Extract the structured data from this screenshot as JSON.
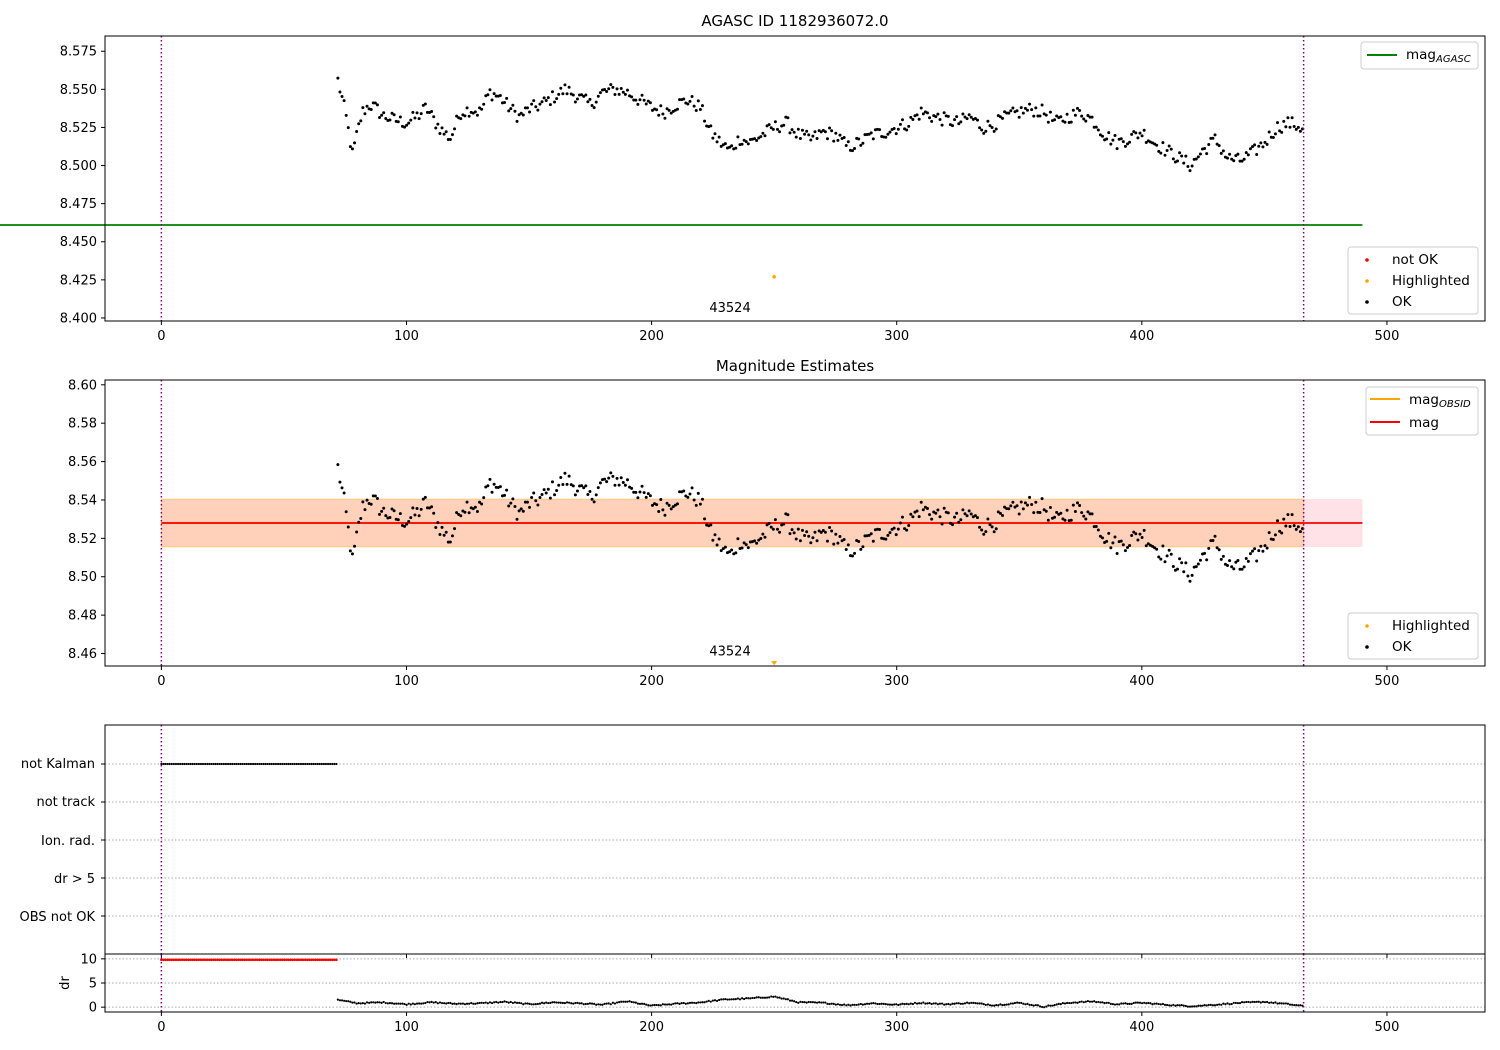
{
  "panels": [
    {
      "id": "agasc",
      "title": "AGASC ID 1182936072.0",
      "xlim": [
        -23,
        540
      ],
      "ylim": [
        8.398,
        8.585
      ],
      "yticks": [
        "8.400",
        "8.425",
        "8.450",
        "8.475",
        "8.500",
        "8.525",
        "8.550",
        "8.575"
      ],
      "xticks": [
        "0",
        "100",
        "200",
        "300",
        "400",
        "500"
      ],
      "annotation": {
        "text": "43524",
        "x": 232,
        "y": 8.404
      },
      "vlines": [
        0,
        466
      ],
      "legend_upper": [
        {
          "label": "mag",
          "sub": "AGASC",
          "color": "#008000"
        }
      ],
      "legend_lower": [
        {
          "label": "not OK",
          "color": "#ff0000"
        },
        {
          "label": "Highlighted",
          "color": "#ffa500"
        },
        {
          "label": "OK",
          "color": "#000000"
        }
      ]
    },
    {
      "id": "estimates",
      "title": "Magnitude Estimates",
      "xlim": [
        -23,
        540
      ],
      "ylim": [
        8.4535,
        8.6025
      ],
      "yticks": [
        "8.46",
        "8.48",
        "8.50",
        "8.52",
        "8.54",
        "8.56",
        "8.58",
        "8.60"
      ],
      "xticks": [
        "0",
        "100",
        "200",
        "300",
        "400",
        "500"
      ],
      "annotation": {
        "text": "43524",
        "x": 232,
        "y": 8.459
      },
      "vlines": [
        0,
        466
      ],
      "legend_upper": [
        {
          "label": "mag",
          "sub": "OBSID",
          "color": "#ffa500"
        },
        {
          "label": "mag",
          "sub": "",
          "color": "#ff0000"
        }
      ],
      "legend_lower": [
        {
          "label": "Highlighted",
          "color": "#ffa500"
        },
        {
          "label": "OK",
          "color": "#000000"
        }
      ]
    },
    {
      "id": "flags",
      "flag_labels": [
        "not Kalman",
        "not track",
        "Ion. rad.",
        "dr > 5",
        "OBS not OK"
      ],
      "vlines": [
        0,
        466
      ]
    },
    {
      "id": "dr",
      "ylabel": "dr",
      "ylim": [
        -1,
        11
      ],
      "yticks": [
        "0",
        "5",
        "10"
      ],
      "xticks": [
        "0",
        "100",
        "200",
        "300",
        "400",
        "500"
      ],
      "vlines": [
        0,
        466
      ]
    }
  ],
  "chart_data": {
    "type": "scatter",
    "x_range": [
      0,
      466
    ],
    "mag_agasc": 8.461,
    "mag_obsid": 8.528,
    "mag_obsid_band": [
      8.5155,
      8.5405
    ],
    "mag": 8.528,
    "mag_band": [
      8.5155,
      8.5405
    ],
    "highlighted_point": {
      "x": 250,
      "y_agasc_panel": 8.427,
      "y_estimates_panel": 8.455
    },
    "not_kalman_range": [
      0,
      72
    ],
    "dr_not_ok_value": 9.8,
    "series_mag_ok": {
      "x": [
        72,
        75,
        78,
        80,
        82,
        85,
        88,
        90,
        95,
        100,
        105,
        108,
        112,
        115,
        118,
        122,
        126,
        130,
        134,
        138,
        142,
        146,
        150,
        155,
        160,
        165,
        170,
        175,
        180,
        185,
        190,
        195,
        200,
        205,
        210,
        215,
        220,
        224,
        228,
        232,
        236,
        240,
        245,
        250,
        255,
        260,
        265,
        270,
        275,
        280,
        285,
        290,
        295,
        300,
        305,
        310,
        315,
        320,
        325,
        330,
        335,
        340,
        345,
        350,
        355,
        360,
        365,
        370,
        375,
        380,
        385,
        390,
        395,
        400,
        405,
        410,
        415,
        420,
        425,
        430,
        435,
        440,
        445,
        450,
        455,
        460,
        465
      ],
      "y": [
        8.556,
        8.535,
        8.507,
        8.522,
        8.535,
        8.54,
        8.537,
        8.533,
        8.53,
        8.528,
        8.533,
        8.538,
        8.528,
        8.522,
        8.518,
        8.535,
        8.537,
        8.535,
        8.548,
        8.545,
        8.538,
        8.532,
        8.537,
        8.54,
        8.545,
        8.55,
        8.545,
        8.54,
        8.548,
        8.55,
        8.548,
        8.543,
        8.538,
        8.535,
        8.54,
        8.543,
        8.538,
        8.522,
        8.515,
        8.51,
        8.518,
        8.515,
        8.52,
        8.525,
        8.528,
        8.52,
        8.517,
        8.522,
        8.52,
        8.512,
        8.515,
        8.52,
        8.522,
        8.525,
        8.528,
        8.535,
        8.532,
        8.53,
        8.528,
        8.532,
        8.525,
        8.527,
        8.532,
        8.535,
        8.537,
        8.535,
        8.528,
        8.532,
        8.535,
        8.53,
        8.52,
        8.515,
        8.518,
        8.522,
        8.515,
        8.51,
        8.505,
        8.5,
        8.51,
        8.517,
        8.505,
        8.503,
        8.508,
        8.515,
        8.525,
        8.528,
        8.525
      ]
    },
    "series_dr_ok": {
      "x": [
        72,
        80,
        90,
        100,
        110,
        120,
        130,
        140,
        150,
        160,
        170,
        180,
        190,
        200,
        210,
        220,
        230,
        240,
        250,
        260,
        270,
        280,
        290,
        300,
        310,
        320,
        330,
        340,
        350,
        360,
        370,
        380,
        390,
        400,
        410,
        420,
        430,
        440,
        450,
        460,
        466
      ],
      "y": [
        1.5,
        0.8,
        1.0,
        0.6,
        1.0,
        0.7,
        0.8,
        1.1,
        0.6,
        1.0,
        0.8,
        0.5,
        1.2,
        0.3,
        0.7,
        1.0,
        1.6,
        1.8,
        2.2,
        1.0,
        0.9,
        0.4,
        0.8,
        0.5,
        0.9,
        0.6,
        0.9,
        0.4,
        0.9,
        0.1,
        0.9,
        1.2,
        0.6,
        0.9,
        0.5,
        0.2,
        0.5,
        0.9,
        1.1,
        0.6,
        0.2
      ]
    }
  }
}
